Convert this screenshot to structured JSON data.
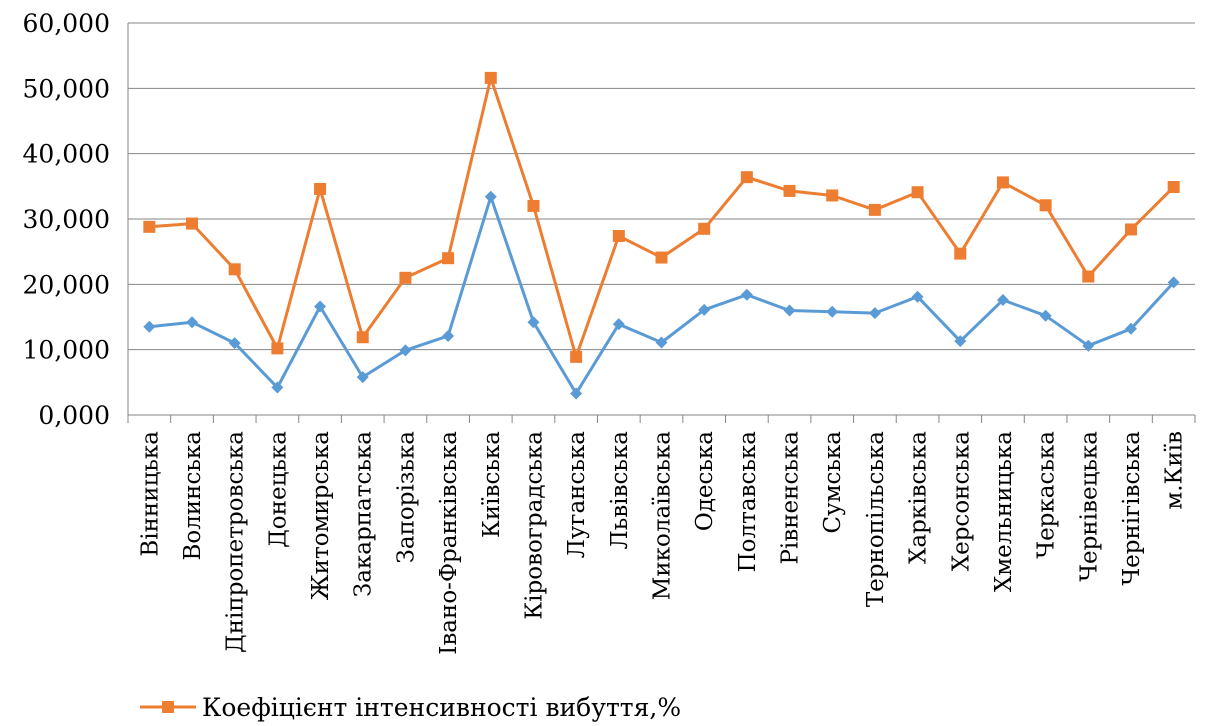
{
  "chart_data": {
    "type": "line",
    "categories": [
      "Вінницька",
      "Волинська",
      "Дніпропетровська",
      "Донецька",
      "Житомирська",
      "Закарпатська",
      "Запорізька",
      "Івано-Франківська",
      "Київська",
      "Кіровоградська",
      "Луганська",
      "Львівська",
      "Миколаївська",
      "Одеська",
      "Полтавська",
      "Рівненська",
      "Сумська",
      "Тернопільська",
      "Харківська",
      "Херсонська",
      "Хмельницька",
      "Черкаська",
      "Чернівецька",
      "Чернігівська",
      "м.Київ"
    ],
    "series": [
      {
        "name": "",
        "color": "#5B9BD5",
        "values": [
          13.5,
          14.2,
          11.0,
          4.2,
          16.6,
          5.8,
          9.9,
          12.1,
          33.4,
          14.2,
          3.3,
          13.9,
          11.1,
          16.1,
          18.4,
          16.0,
          15.8,
          15.6,
          18.1,
          11.3,
          17.6,
          15.2,
          10.6,
          13.2,
          20.3
        ]
      },
      {
        "name": "Коефіцієнт інтенсивності вибуття,%",
        "color": "#ED7D31",
        "values": [
          28.8,
          29.3,
          22.3,
          10.2,
          34.6,
          11.9,
          21.0,
          24.0,
          51.6,
          32.0,
          8.9,
          27.4,
          24.1,
          28.5,
          36.4,
          34.3,
          33.6,
          31.4,
          34.1,
          24.7,
          35.6,
          32.1,
          21.2,
          28.4,
          34.9
        ]
      }
    ],
    "y_ticks": [
      "0,000",
      "10,000",
      "20,000",
      "30,000",
      "40,000",
      "50,000",
      "60,000"
    ],
    "ylim": [
      0,
      60
    ],
    "grid": true,
    "legend_position": "bottom-left"
  },
  "legend": {
    "label": "Коефіцієнт інтенсивності вибуття,%",
    "color": "#ED7D31"
  }
}
